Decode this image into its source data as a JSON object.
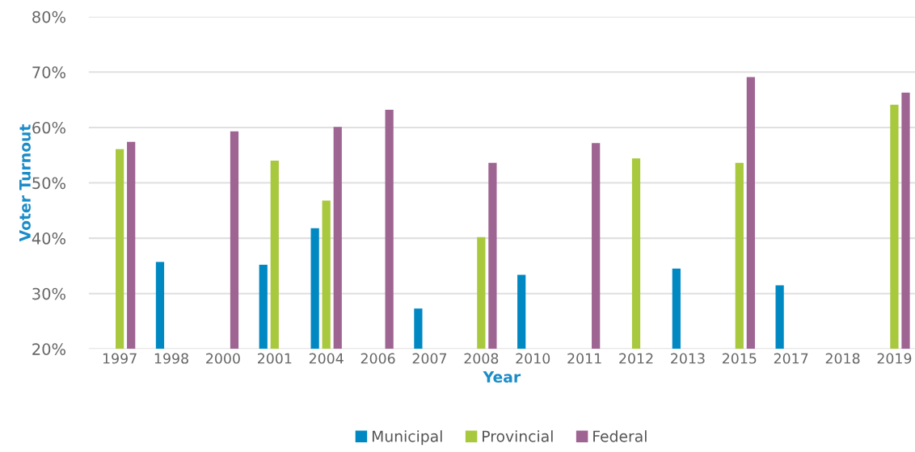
{
  "chart_data": {
    "type": "bar",
    "xlabel": "Year",
    "ylabel": "Voter Turnout",
    "categories": [
      "1997",
      "1998",
      "2000",
      "2001",
      "2004",
      "2006",
      "2007",
      "2008",
      "2010",
      "2011",
      "2012",
      "2013",
      "2015",
      "2017",
      "2018",
      "2019"
    ],
    "series": [
      {
        "name": "Municipal",
        "color": "#0088c2",
        "values": [
          null,
          35.7,
          null,
          35.2,
          41.8,
          null,
          27.3,
          null,
          33.4,
          null,
          null,
          34.5,
          null,
          31.5,
          null,
          null
        ]
      },
      {
        "name": "Provincial",
        "color": "#a8c83e",
        "values": [
          56.1,
          null,
          null,
          54.0,
          46.8,
          null,
          null,
          40.2,
          null,
          null,
          54.4,
          null,
          53.6,
          null,
          null,
          64.1
        ]
      },
      {
        "name": "Federal",
        "color": "#9e6492",
        "values": [
          57.4,
          null,
          59.3,
          null,
          60.1,
          63.2,
          null,
          53.6,
          null,
          57.2,
          null,
          null,
          69.1,
          null,
          null,
          66.3
        ]
      }
    ],
    "ylim": [
      20,
      80
    ],
    "yticks": [
      {
        "value": 20,
        "label": "20%"
      },
      {
        "value": 30,
        "label": "30%"
      },
      {
        "value": 40,
        "label": "40%"
      },
      {
        "value": 50,
        "label": "50%"
      },
      {
        "value": 60,
        "label": "60%"
      },
      {
        "value": 70,
        "label": "70%"
      },
      {
        "value": 80,
        "label": "80%"
      }
    ],
    "grid": "y",
    "legend": "bottom"
  }
}
